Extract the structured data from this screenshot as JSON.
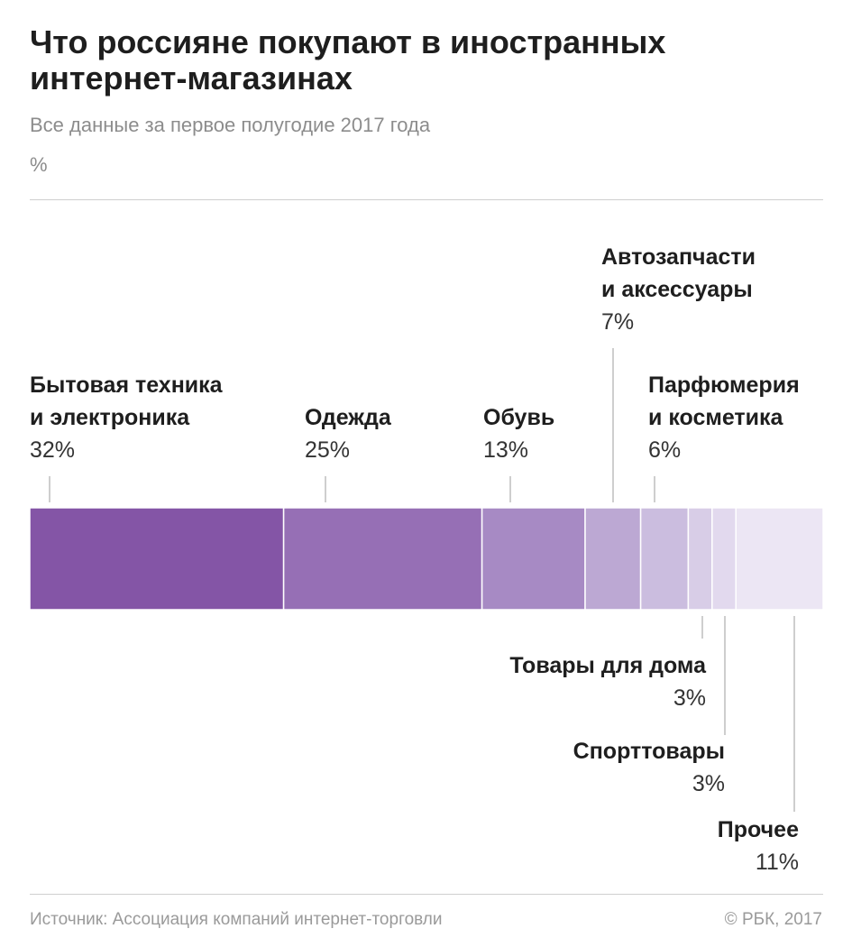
{
  "title_lines": [
    "Что россияне покупают в иностранных",
    "интернет-магазинах"
  ],
  "subtitle": "Все данные за первое полугодие 2017 года",
  "unit": "%",
  "chart_data": {
    "type": "bar",
    "stacked": true,
    "orientation": "horizontal",
    "total": 100,
    "segments": [
      {
        "label_lines": [
          "Бытовая техника",
          "и электроника"
        ],
        "value": 32,
        "value_label": "32%",
        "color": "#8455a6"
      },
      {
        "label_lines": [
          "Одежда"
        ],
        "value": 25,
        "value_label": "25%",
        "color": "#966fb5"
      },
      {
        "label_lines": [
          "Обувь"
        ],
        "value": 13,
        "value_label": "13%",
        "color": "#a78ac4"
      },
      {
        "label_lines": [
          "Автозапчасти",
          "и аксессуары"
        ],
        "value": 7,
        "value_label": "7%",
        "color": "#bca8d3"
      },
      {
        "label_lines": [
          "Парфюмерия",
          "и косметика"
        ],
        "value": 6,
        "value_label": "6%",
        "color": "#cbbddf"
      },
      {
        "label_lines": [
          "Товары для дома"
        ],
        "value": 3,
        "value_label": "3%",
        "color": "#d8cde7"
      },
      {
        "label_lines": [
          "Спорттовары"
        ],
        "value": 3,
        "value_label": "3%",
        "color": "#e2d9ee"
      },
      {
        "label_lines": [
          "Прочее"
        ],
        "value": 11,
        "value_label": "11%",
        "color": "#ece6f4"
      }
    ]
  },
  "footer": {
    "source": "Источник: Ассоциация компаний интернет-торговли",
    "copyright": "© РБК, 2017"
  }
}
